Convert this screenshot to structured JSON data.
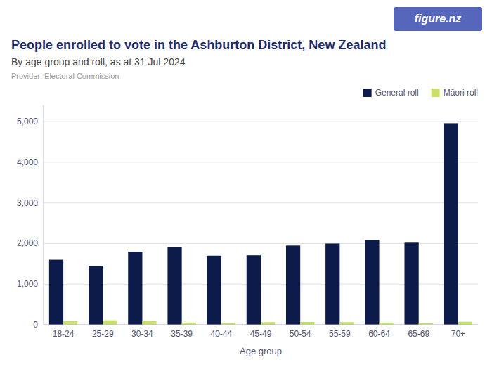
{
  "chart_data": {
    "type": "bar",
    "title": "People enrolled to vote in the Ashburton District, New Zealand",
    "subtitle": "By age group and roll, as at 31 Jul 2024",
    "annotations": [
      "Provider: Electoral Commission",
      "figure.nz"
    ],
    "x_label": "Age group",
    "categories": [
      "18-24",
      "25-29",
      "30-34",
      "35-39",
      "40-44",
      "45-49",
      "50-54",
      "55-59",
      "60-64",
      "65-69",
      "70+"
    ],
    "series": [
      {
        "name": "General roll",
        "color": "#0d1b4b",
        "values": [
          1600,
          1450,
          1800,
          1910,
          1700,
          1710,
          1950,
          2000,
          2090,
          2020,
          4960
        ]
      },
      {
        "name": "Māori roll",
        "color": "#c8e06a",
        "values": [
          90,
          110,
          95,
          55,
          45,
          65,
          70,
          65,
          55,
          40,
          75
        ]
      }
    ],
    "ylim": [
      0,
      5400
    ],
    "yticks": [
      0,
      {
        "value": 1000,
        "label": "1,000"
      },
      {
        "value": 2000,
        "label": "2,000"
      },
      {
        "value": 3000,
        "label": "3,000"
      },
      {
        "value": 4000,
        "label": "4,000"
      },
      {
        "value": 5000,
        "label": "5,000"
      }
    ],
    "grid": true,
    "legend": "upper right"
  }
}
